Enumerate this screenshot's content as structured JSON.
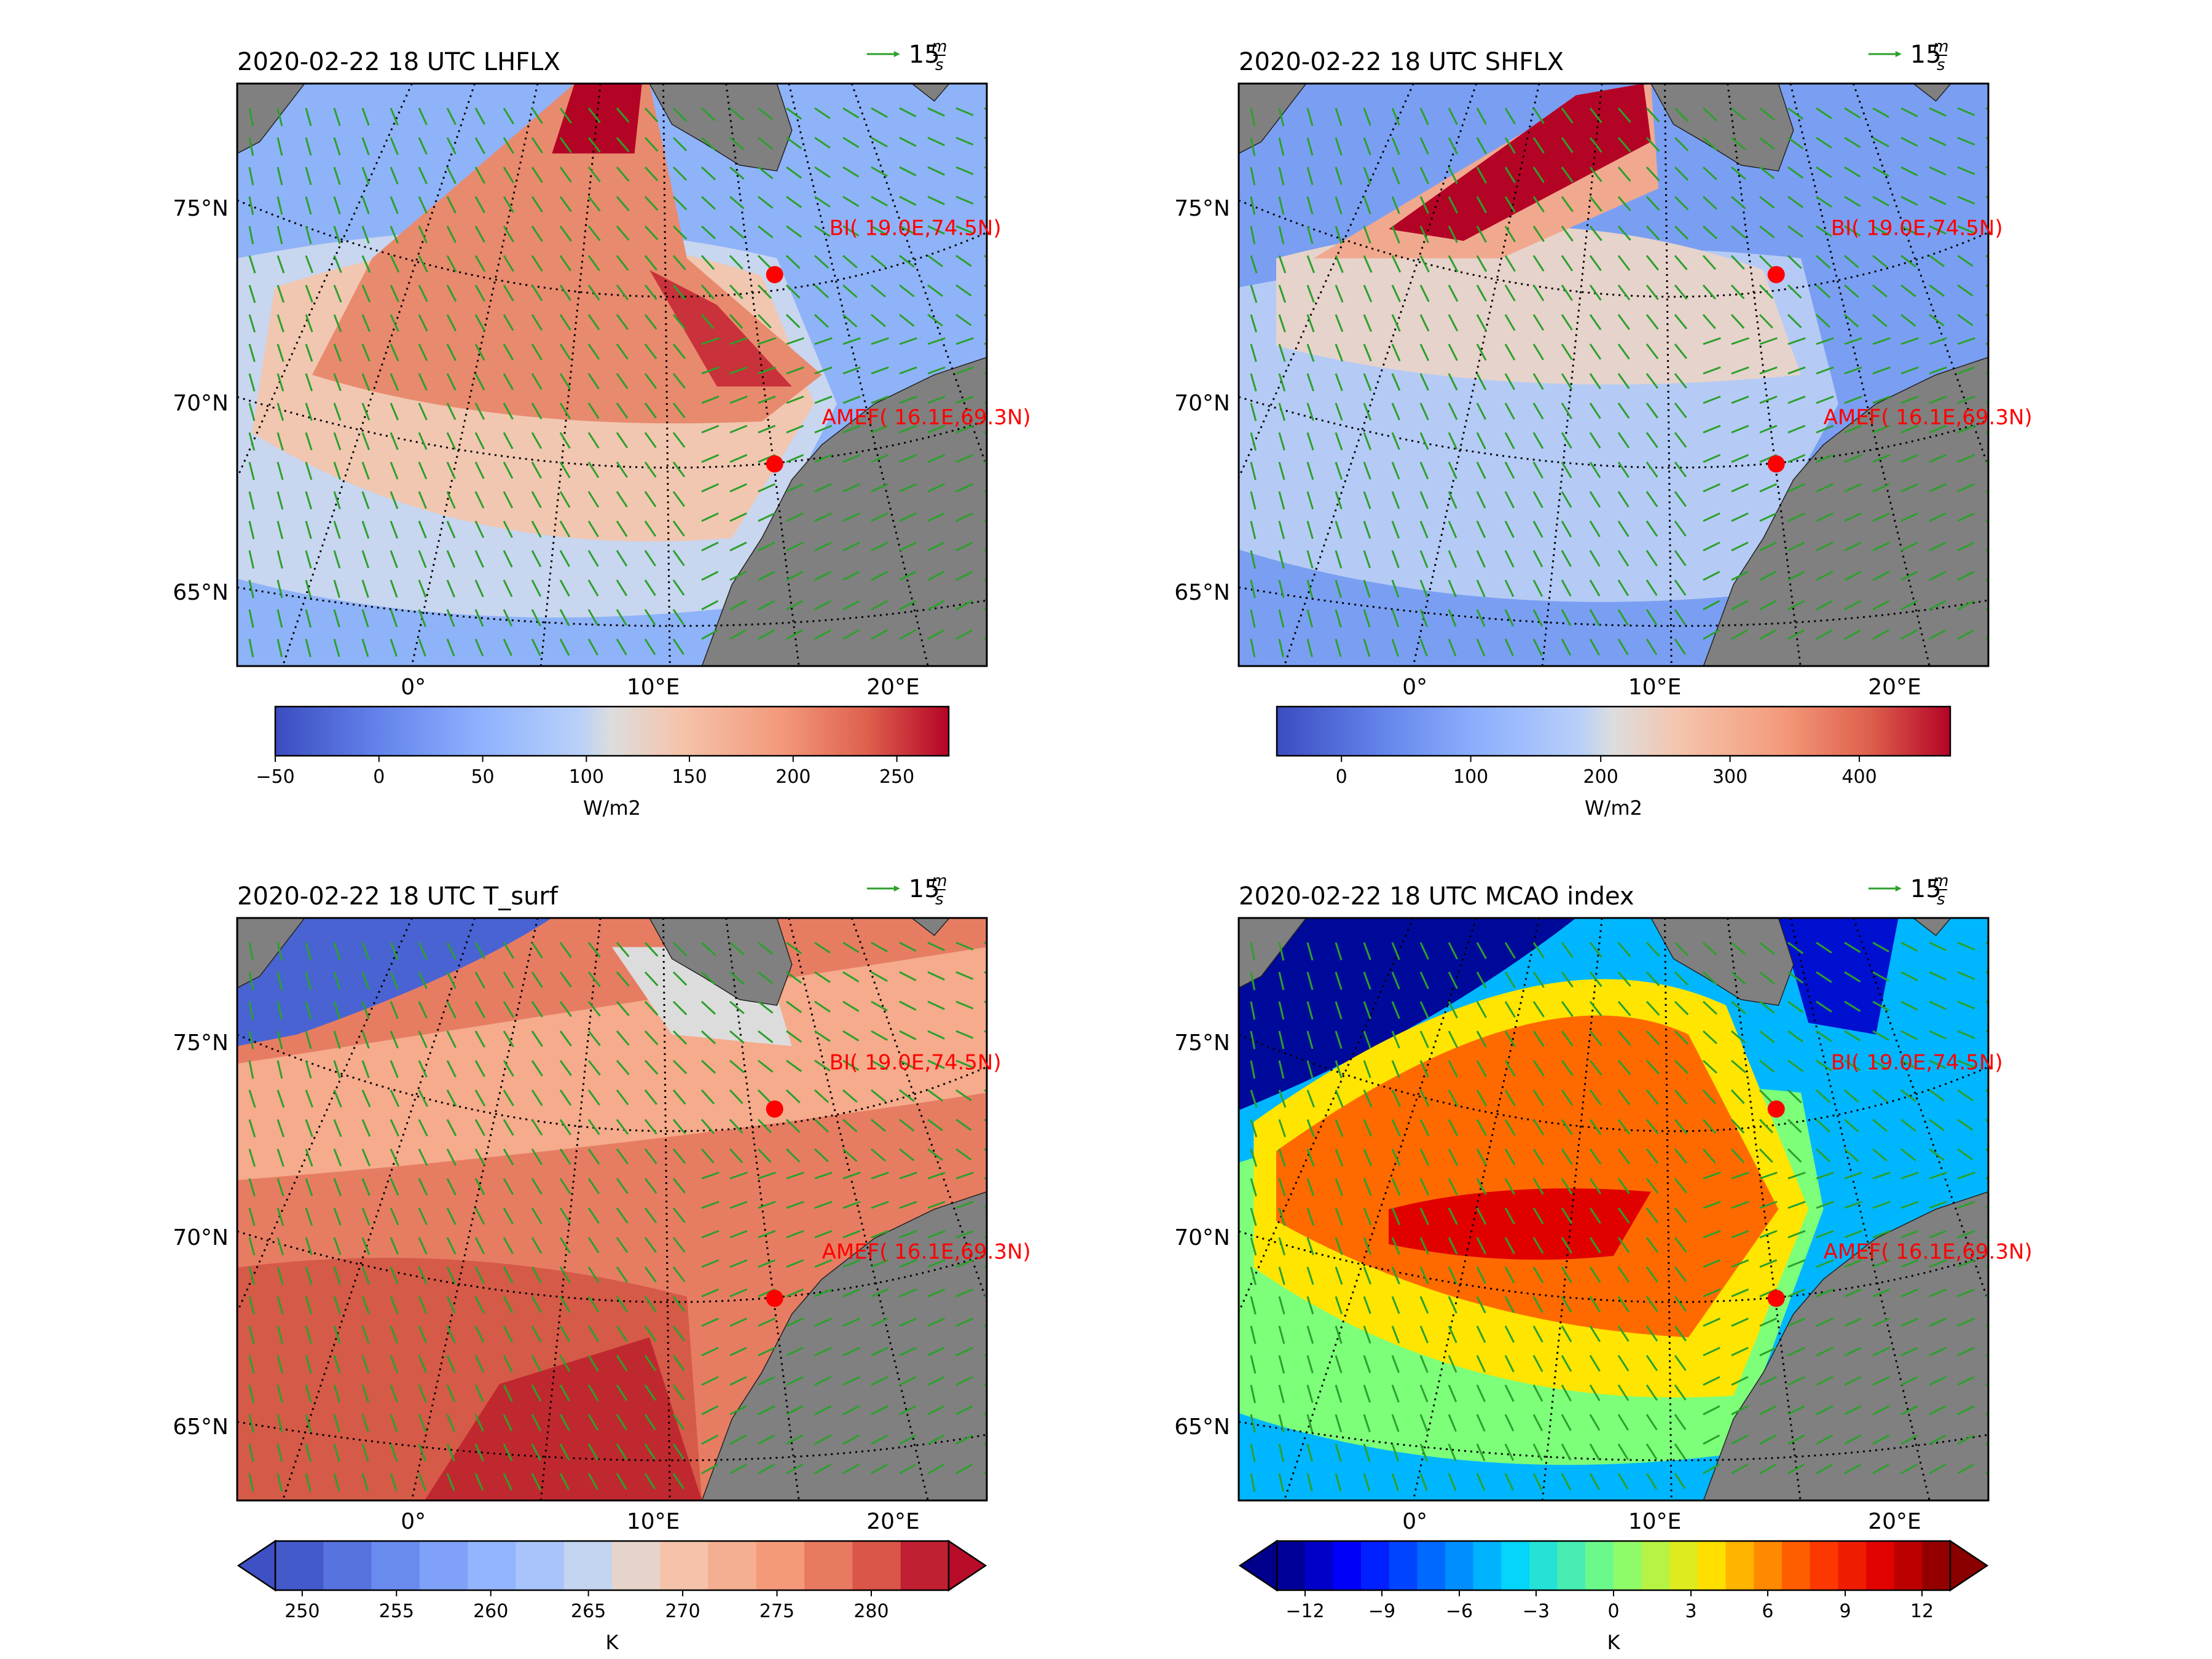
{
  "figure": {
    "panels": [
      {
        "id": "lhflx",
        "title": "2020-02-22 18 UTC LHFLX",
        "quiver_key": {
          "value": 15,
          "unit_top": "m",
          "unit_bottom": "s"
        },
        "colormap": "coolwarm",
        "colorbar": {
          "type": "continuous",
          "ticks": [
            "−50",
            "0",
            "50",
            "100",
            "150",
            "200",
            "250"
          ],
          "label": "W/m2",
          "extend": "neither"
        }
      },
      {
        "id": "shflx",
        "title": "2020-02-22 18 UTC SHFLX",
        "quiver_key": {
          "value": 15,
          "unit_top": "m",
          "unit_bottom": "s"
        },
        "colormap": "coolwarm",
        "colorbar": {
          "type": "continuous",
          "ticks": [
            "0",
            "100",
            "200",
            "300",
            "400"
          ],
          "label": "W/m2",
          "extend": "neither"
        }
      },
      {
        "id": "tsurf",
        "title": "2020-02-22 18 UTC T_surf",
        "quiver_key": {
          "value": 15,
          "unit_top": "m",
          "unit_bottom": "s"
        },
        "colormap": "coolwarm",
        "colorbar": {
          "type": "discrete",
          "ticks": [
            "250",
            "255",
            "260",
            "265",
            "270",
            "275",
            "280"
          ],
          "label": "K",
          "extend": "both"
        }
      },
      {
        "id": "mcao",
        "title": "2020-02-22 18 UTC MCAO index",
        "quiver_key": {
          "value": 15,
          "unit_top": "m",
          "unit_bottom": "s"
        },
        "colormap": "jet",
        "colorbar": {
          "type": "discrete",
          "ticks": [
            "−12",
            "−9",
            "−6",
            "−3",
            "0",
            "3",
            "6",
            "9",
            "12"
          ],
          "label": "K",
          "extend": "both"
        }
      }
    ],
    "axes": {
      "lat_labels": [
        "75°N",
        "70°N",
        "65°N"
      ],
      "lon_labels": [
        "0°",
        "10°E",
        "20°E"
      ]
    },
    "stations": [
      {
        "label": "BI( 19.0E,74.5N)"
      },
      {
        "label": "AMEF( 16.1E,69.3N)"
      }
    ],
    "colors": {
      "land": "#808080",
      "wind_arrow": "#2ca02c",
      "station": "#ff0000",
      "graticule": "#000000"
    }
  },
  "chart_data": [
    {
      "type": "heatmap",
      "title": "2020-02-22 18 UTC LHFLX",
      "variable": "LHFLX",
      "units": "W/m2",
      "clim": [
        -50,
        275
      ],
      "colorbar_ticks": [
        -50,
        0,
        50,
        100,
        150,
        200,
        250
      ],
      "lat_ticks": [
        65,
        70,
        75
      ],
      "lon_ticks": [
        0,
        10,
        20
      ],
      "overlay": "wind vectors",
      "stations": [
        {
          "name": "BI",
          "lon": 19.0,
          "lat": 74.5
        },
        {
          "name": "AMEF",
          "lon": 16.1,
          "lat": 69.3
        }
      ]
    },
    {
      "type": "heatmap",
      "title": "2020-02-22 18 UTC SHFLX",
      "variable": "SHFLX",
      "units": "W/m2",
      "clim": [
        -50,
        470
      ],
      "colorbar_ticks": [
        0,
        100,
        200,
        300,
        400
      ],
      "lat_ticks": [
        65,
        70,
        75
      ],
      "lon_ticks": [
        0,
        10,
        20
      ],
      "overlay": "wind vectors",
      "stations": [
        {
          "name": "BI",
          "lon": 19.0,
          "lat": 74.5
        },
        {
          "name": "AMEF",
          "lon": 16.1,
          "lat": 69.3
        }
      ]
    },
    {
      "type": "heatmap",
      "title": "2020-02-22 18 UTC T_surf",
      "variable": "T_surf",
      "units": "K",
      "levels": [
        250,
        252.5,
        255,
        257.5,
        260,
        262.5,
        265,
        267.5,
        270,
        272.5,
        275,
        277.5,
        280,
        282.5
      ],
      "colorbar_ticks": [
        250,
        255,
        260,
        265,
        270,
        275,
        280
      ],
      "lat_ticks": [
        65,
        70,
        75
      ],
      "lon_ticks": [
        0,
        10,
        20
      ],
      "overlay": "wind vectors",
      "stations": [
        {
          "name": "BI",
          "lon": 19.0,
          "lat": 74.5
        },
        {
          "name": "AMEF",
          "lon": 16.1,
          "lat": 69.3
        }
      ]
    },
    {
      "type": "heatmap",
      "title": "2020-02-22 18 UTC MCAO index",
      "variable": "MCAO index",
      "units": "K",
      "levels": [
        -12,
        -11,
        -10,
        -9,
        -8,
        -7,
        -6,
        -5,
        -4,
        -3,
        -2,
        -1,
        0,
        1,
        2,
        3,
        4,
        5,
        6,
        7,
        8,
        9,
        10,
        11,
        12
      ],
      "colorbar_ticks": [
        -12,
        -9,
        -6,
        -3,
        0,
        3,
        6,
        9,
        12
      ],
      "lat_ticks": [
        65,
        70,
        75
      ],
      "lon_ticks": [
        0,
        10,
        20
      ],
      "overlay": "wind vectors",
      "stations": [
        {
          "name": "BI",
          "lon": 19.0,
          "lat": 74.5
        },
        {
          "name": "AMEF",
          "lon": 16.1,
          "lat": 69.3
        }
      ]
    }
  ]
}
